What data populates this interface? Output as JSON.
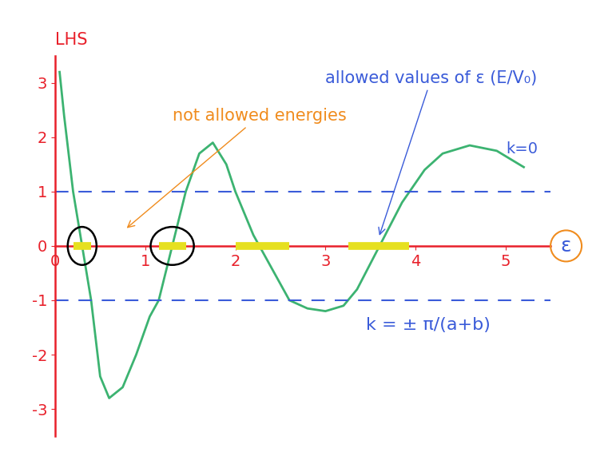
{
  "chart_data": {
    "type": "line",
    "x_label": "ε",
    "y_label": "LHS",
    "x": [
      0.05,
      0.1,
      0.2,
      0.3,
      0.4,
      0.5,
      0.6,
      0.75,
      0.9,
      1.05,
      1.15,
      1.3,
      1.45,
      1.6,
      1.75,
      1.9,
      2.0,
      2.2,
      2.4,
      2.6,
      2.8,
      3.0,
      3.2,
      3.35,
      3.6,
      3.85,
      4.1,
      4.3,
      4.6,
      4.9,
      5.2
    ],
    "series": [
      {
        "name": "LHS",
        "color": "#3cb371",
        "values": [
          3.2,
          2.4,
          1.0,
          0.0,
          -1.0,
          -2.4,
          -2.8,
          -2.6,
          -2.0,
          -1.3,
          -1.0,
          0.0,
          1.0,
          1.7,
          1.9,
          1.5,
          1.0,
          0.2,
          -0.4,
          -1.0,
          -1.15,
          -1.2,
          -1.1,
          -0.8,
          0.0,
          0.8,
          1.4,
          1.7,
          1.85,
          1.75,
          1.45
        ]
      }
    ],
    "xlim": [
      0,
      5.5
    ],
    "ylim": [
      -3.5,
      3.5
    ],
    "xticks": [
      0,
      1,
      2,
      3,
      4,
      5
    ],
    "yticks": [
      -3,
      -2,
      -1,
      0,
      1,
      2,
      3
    ],
    "k_lines": [
      {
        "value": 1,
        "label": "k=0"
      },
      {
        "value": -1,
        "label": "k = ± π/(a+b)"
      }
    ],
    "allowed_bands": [
      [
        0.2,
        0.4
      ],
      [
        1.15,
        1.45
      ],
      [
        2.0,
        2.6
      ],
      [
        3.25,
        3.93
      ]
    ],
    "annotations": [
      "not allowed energies",
      "allowed values of ε (E/V₀)"
    ]
  }
}
